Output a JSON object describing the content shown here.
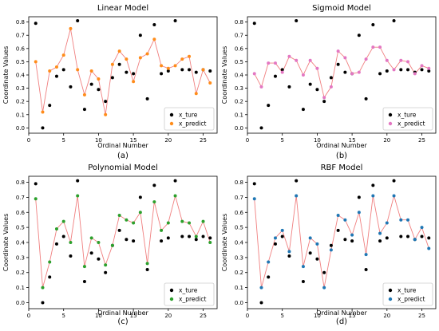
{
  "colors": {
    "actual": "#000000",
    "line": "#f08080"
  },
  "chart_data": [
    {
      "type": "scatter",
      "title": "Linear Model",
      "caption": "(a)",
      "xlabel": "Ordinal Number",
      "ylabel": "Coordinate Values",
      "xlim": [
        0,
        27
      ],
      "ylim": [
        -0.04,
        0.84
      ],
      "xticks": [
        0,
        5,
        10,
        15,
        20,
        25
      ],
      "yticks": [
        0.0,
        0.1,
        0.2,
        0.3,
        0.4,
        0.5,
        0.6,
        0.7,
        0.8
      ],
      "grid": false,
      "legend": "bottom-right",
      "predict_color": "#ff8c1a",
      "x": [
        1,
        2,
        3,
        4,
        5,
        6,
        7,
        8,
        9,
        10,
        11,
        12,
        13,
        14,
        15,
        16,
        17,
        18,
        19,
        20,
        21,
        22,
        23,
        24,
        25,
        26
      ],
      "series": [
        {
          "name": "x_ture",
          "values": [
            0.79,
            0.0,
            0.17,
            0.39,
            0.44,
            0.31,
            0.81,
            0.14,
            0.33,
            0.29,
            0.2,
            0.38,
            0.48,
            0.42,
            0.41,
            0.7,
            0.22,
            0.78,
            0.41,
            0.43,
            0.81,
            0.44,
            0.44,
            0.42,
            0.44,
            0.43
          ]
        },
        {
          "name": "x_predict",
          "values": [
            0.5,
            0.12,
            0.43,
            0.46,
            0.55,
            0.75,
            0.44,
            0.25,
            0.43,
            0.37,
            0.1,
            0.48,
            0.58,
            0.52,
            0.35,
            0.53,
            0.56,
            0.67,
            0.47,
            0.45,
            0.47,
            0.52,
            0.54,
            0.26,
            0.44,
            0.34
          ]
        }
      ]
    },
    {
      "type": "scatter",
      "title": "Sigmoid Model",
      "caption": "(b)",
      "xlabel": "Ordinal Number",
      "ylabel": "Coordinate Values",
      "xlim": [
        0,
        27
      ],
      "ylim": [
        -0.04,
        0.84
      ],
      "xticks": [
        0,
        5,
        10,
        15,
        20,
        25
      ],
      "yticks": [
        0.0,
        0.1,
        0.2,
        0.3,
        0.4,
        0.5,
        0.6,
        0.7,
        0.8
      ],
      "grid": false,
      "legend": "bottom-right",
      "predict_color": "#e377c2",
      "x": [
        1,
        2,
        3,
        4,
        5,
        6,
        7,
        8,
        9,
        10,
        11,
        12,
        13,
        14,
        15,
        16,
        17,
        18,
        19,
        20,
        21,
        22,
        23,
        24,
        25,
        26
      ],
      "series": [
        {
          "name": "x_ture",
          "values": [
            0.79,
            0.0,
            0.17,
            0.39,
            0.44,
            0.31,
            0.81,
            0.14,
            0.33,
            0.29,
            0.2,
            0.38,
            0.48,
            0.42,
            0.41,
            0.7,
            0.22,
            0.78,
            0.41,
            0.43,
            0.81,
            0.44,
            0.44,
            0.42,
            0.44,
            0.43
          ]
        },
        {
          "name": "x_predict",
          "values": [
            0.41,
            0.31,
            0.49,
            0.49,
            0.42,
            0.54,
            0.51,
            0.4,
            0.51,
            0.45,
            0.23,
            0.31,
            0.58,
            0.53,
            0.41,
            0.42,
            0.52,
            0.61,
            0.61,
            0.51,
            0.44,
            0.51,
            0.5,
            0.41,
            0.47,
            0.45
          ]
        }
      ]
    },
    {
      "type": "scatter",
      "title": "Polynomial Model",
      "caption": "(c)",
      "xlabel": "Ordinal Number",
      "ylabel": "Coordinate Values",
      "xlim": [
        0,
        27
      ],
      "ylim": [
        -0.04,
        0.84
      ],
      "xticks": [
        0,
        5,
        10,
        15,
        20,
        25
      ],
      "yticks": [
        0.0,
        0.1,
        0.2,
        0.3,
        0.4,
        0.5,
        0.6,
        0.7,
        0.8
      ],
      "grid": false,
      "legend": "bottom-right",
      "predict_color": "#2ca02c",
      "x": [
        1,
        2,
        3,
        4,
        5,
        6,
        7,
        8,
        9,
        10,
        11,
        12,
        13,
        14,
        15,
        16,
        17,
        18,
        19,
        20,
        21,
        22,
        23,
        24,
        25,
        26
      ],
      "series": [
        {
          "name": "x_ture",
          "values": [
            0.79,
            0.0,
            0.17,
            0.39,
            0.44,
            0.31,
            0.81,
            0.14,
            0.33,
            0.29,
            0.2,
            0.38,
            0.48,
            0.42,
            0.41,
            0.7,
            0.22,
            0.78,
            0.41,
            0.43,
            0.81,
            0.44,
            0.44,
            0.42,
            0.44,
            0.43
          ]
        },
        {
          "name": "x_predict",
          "values": [
            0.69,
            0.1,
            0.27,
            0.49,
            0.54,
            0.4,
            0.71,
            0.24,
            0.43,
            0.4,
            0.25,
            0.38,
            0.58,
            0.55,
            0.53,
            0.6,
            0.26,
            0.67,
            0.48,
            0.53,
            0.71,
            0.54,
            0.53,
            0.44,
            0.54,
            0.4
          ]
        }
      ]
    },
    {
      "type": "scatter",
      "title": "RBF Model",
      "caption": "(d)",
      "xlabel": "Ordinal Number",
      "ylabel": "Coordinate Values",
      "xlim": [
        0,
        27
      ],
      "ylim": [
        -0.04,
        0.84
      ],
      "xticks": [
        0,
        5,
        10,
        15,
        20,
        25
      ],
      "yticks": [
        0.0,
        0.1,
        0.2,
        0.3,
        0.4,
        0.5,
        0.6,
        0.7,
        0.8
      ],
      "grid": false,
      "legend": "bottom-right",
      "predict_color": "#1f77b4",
      "x": [
        1,
        2,
        3,
        4,
        5,
        6,
        7,
        8,
        9,
        10,
        11,
        12,
        13,
        14,
        15,
        16,
        17,
        18,
        19,
        20,
        21,
        22,
        23,
        24,
        25,
        26
      ],
      "series": [
        {
          "name": "x_ture",
          "values": [
            0.79,
            0.0,
            0.17,
            0.39,
            0.44,
            0.31,
            0.81,
            0.14,
            0.33,
            0.29,
            0.2,
            0.38,
            0.48,
            0.42,
            0.41,
            0.7,
            0.22,
            0.78,
            0.41,
            0.43,
            0.81,
            0.44,
            0.44,
            0.42,
            0.44,
            0.43
          ]
        },
        {
          "name": "x_predict",
          "values": [
            0.69,
            0.1,
            0.27,
            0.43,
            0.48,
            0.34,
            0.71,
            0.24,
            0.43,
            0.39,
            0.1,
            0.35,
            0.58,
            0.55,
            0.45,
            0.6,
            0.32,
            0.71,
            0.46,
            0.53,
            0.71,
            0.55,
            0.55,
            0.42,
            0.5,
            0.36
          ]
        }
      ]
    }
  ]
}
